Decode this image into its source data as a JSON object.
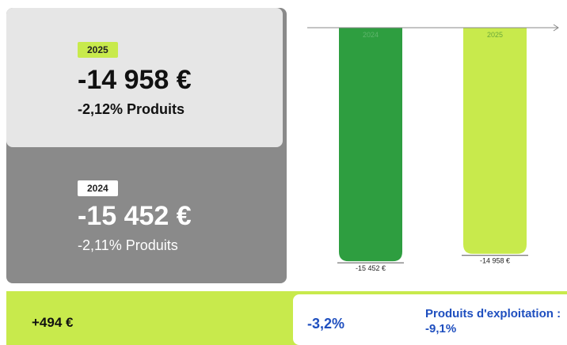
{
  "cards": [
    {
      "badge": "2025",
      "amount": "-14 958 €",
      "share": "-2,12% Produits"
    },
    {
      "badge": "2024",
      "amount": "-15 452 €",
      "share": "-2,11% Produits"
    }
  ],
  "chart_data": {
    "type": "bar",
    "categories": [
      "2024",
      "2025"
    ],
    "values": [
      -15452,
      -14958
    ],
    "value_labels": [
      "-15 452 €",
      "-14 958 €"
    ],
    "colors": [
      "#2e9e40",
      "#c8ea4c"
    ],
    "ylim": [
      -16700,
      0
    ]
  },
  "footer": {
    "difference": "+494 €",
    "change": "-3,2%",
    "note": "Produits d'exploitation : -9,1%"
  }
}
